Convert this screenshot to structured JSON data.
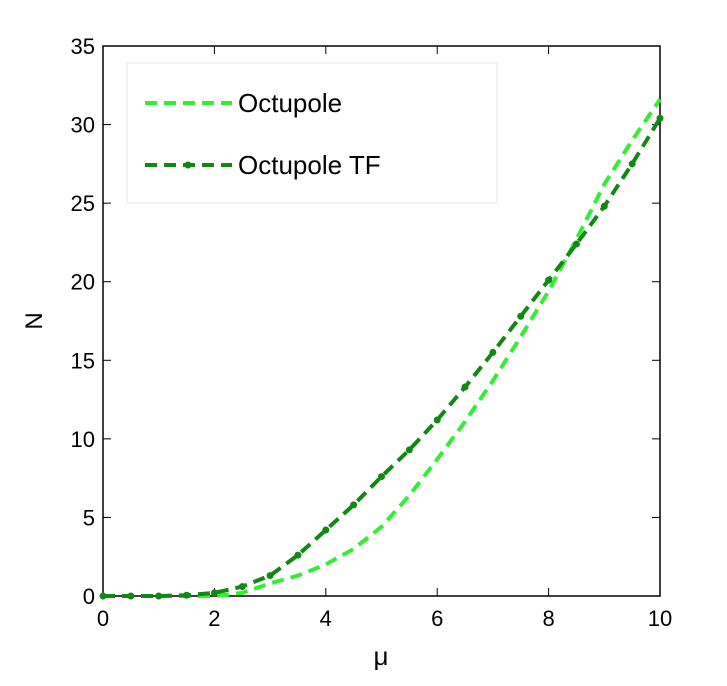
{
  "chart_data": {
    "type": "line",
    "xlabel": "μ",
    "ylabel": "N",
    "xlim": [
      0,
      10
    ],
    "xticks": [
      0,
      2,
      4,
      6,
      8,
      10
    ],
    "ylim": [
      0,
      35
    ],
    "yticks": [
      0,
      5,
      10,
      15,
      20,
      25,
      30,
      35
    ],
    "x": [
      0,
      0.5,
      1,
      1.5,
      2,
      2.5,
      3,
      3.5,
      4,
      4.5,
      5,
      5.5,
      6,
      6.5,
      7,
      7.5,
      8,
      8.5,
      9,
      9.5,
      10
    ],
    "series": [
      {
        "name": "Octupole",
        "color": "#33ee33",
        "markers": false,
        "values": [
          0,
          0,
          0,
          0,
          0,
          0.2,
          0.8,
          1.3,
          2.0,
          3.0,
          4.4,
          6.4,
          8.7,
          11.1,
          13.7,
          16.5,
          19.4,
          22.7,
          26.2,
          29.0,
          31.6
        ]
      },
      {
        "name": "Octupole TF",
        "color": "#118811",
        "markers": true,
        "values": [
          0,
          0,
          0,
          0.05,
          0.2,
          0.6,
          1.3,
          2.6,
          4.2,
          5.8,
          7.6,
          9.3,
          11.2,
          13.3,
          15.5,
          17.8,
          20.1,
          22.4,
          24.8,
          27.5,
          30.4
        ]
      }
    ]
  }
}
